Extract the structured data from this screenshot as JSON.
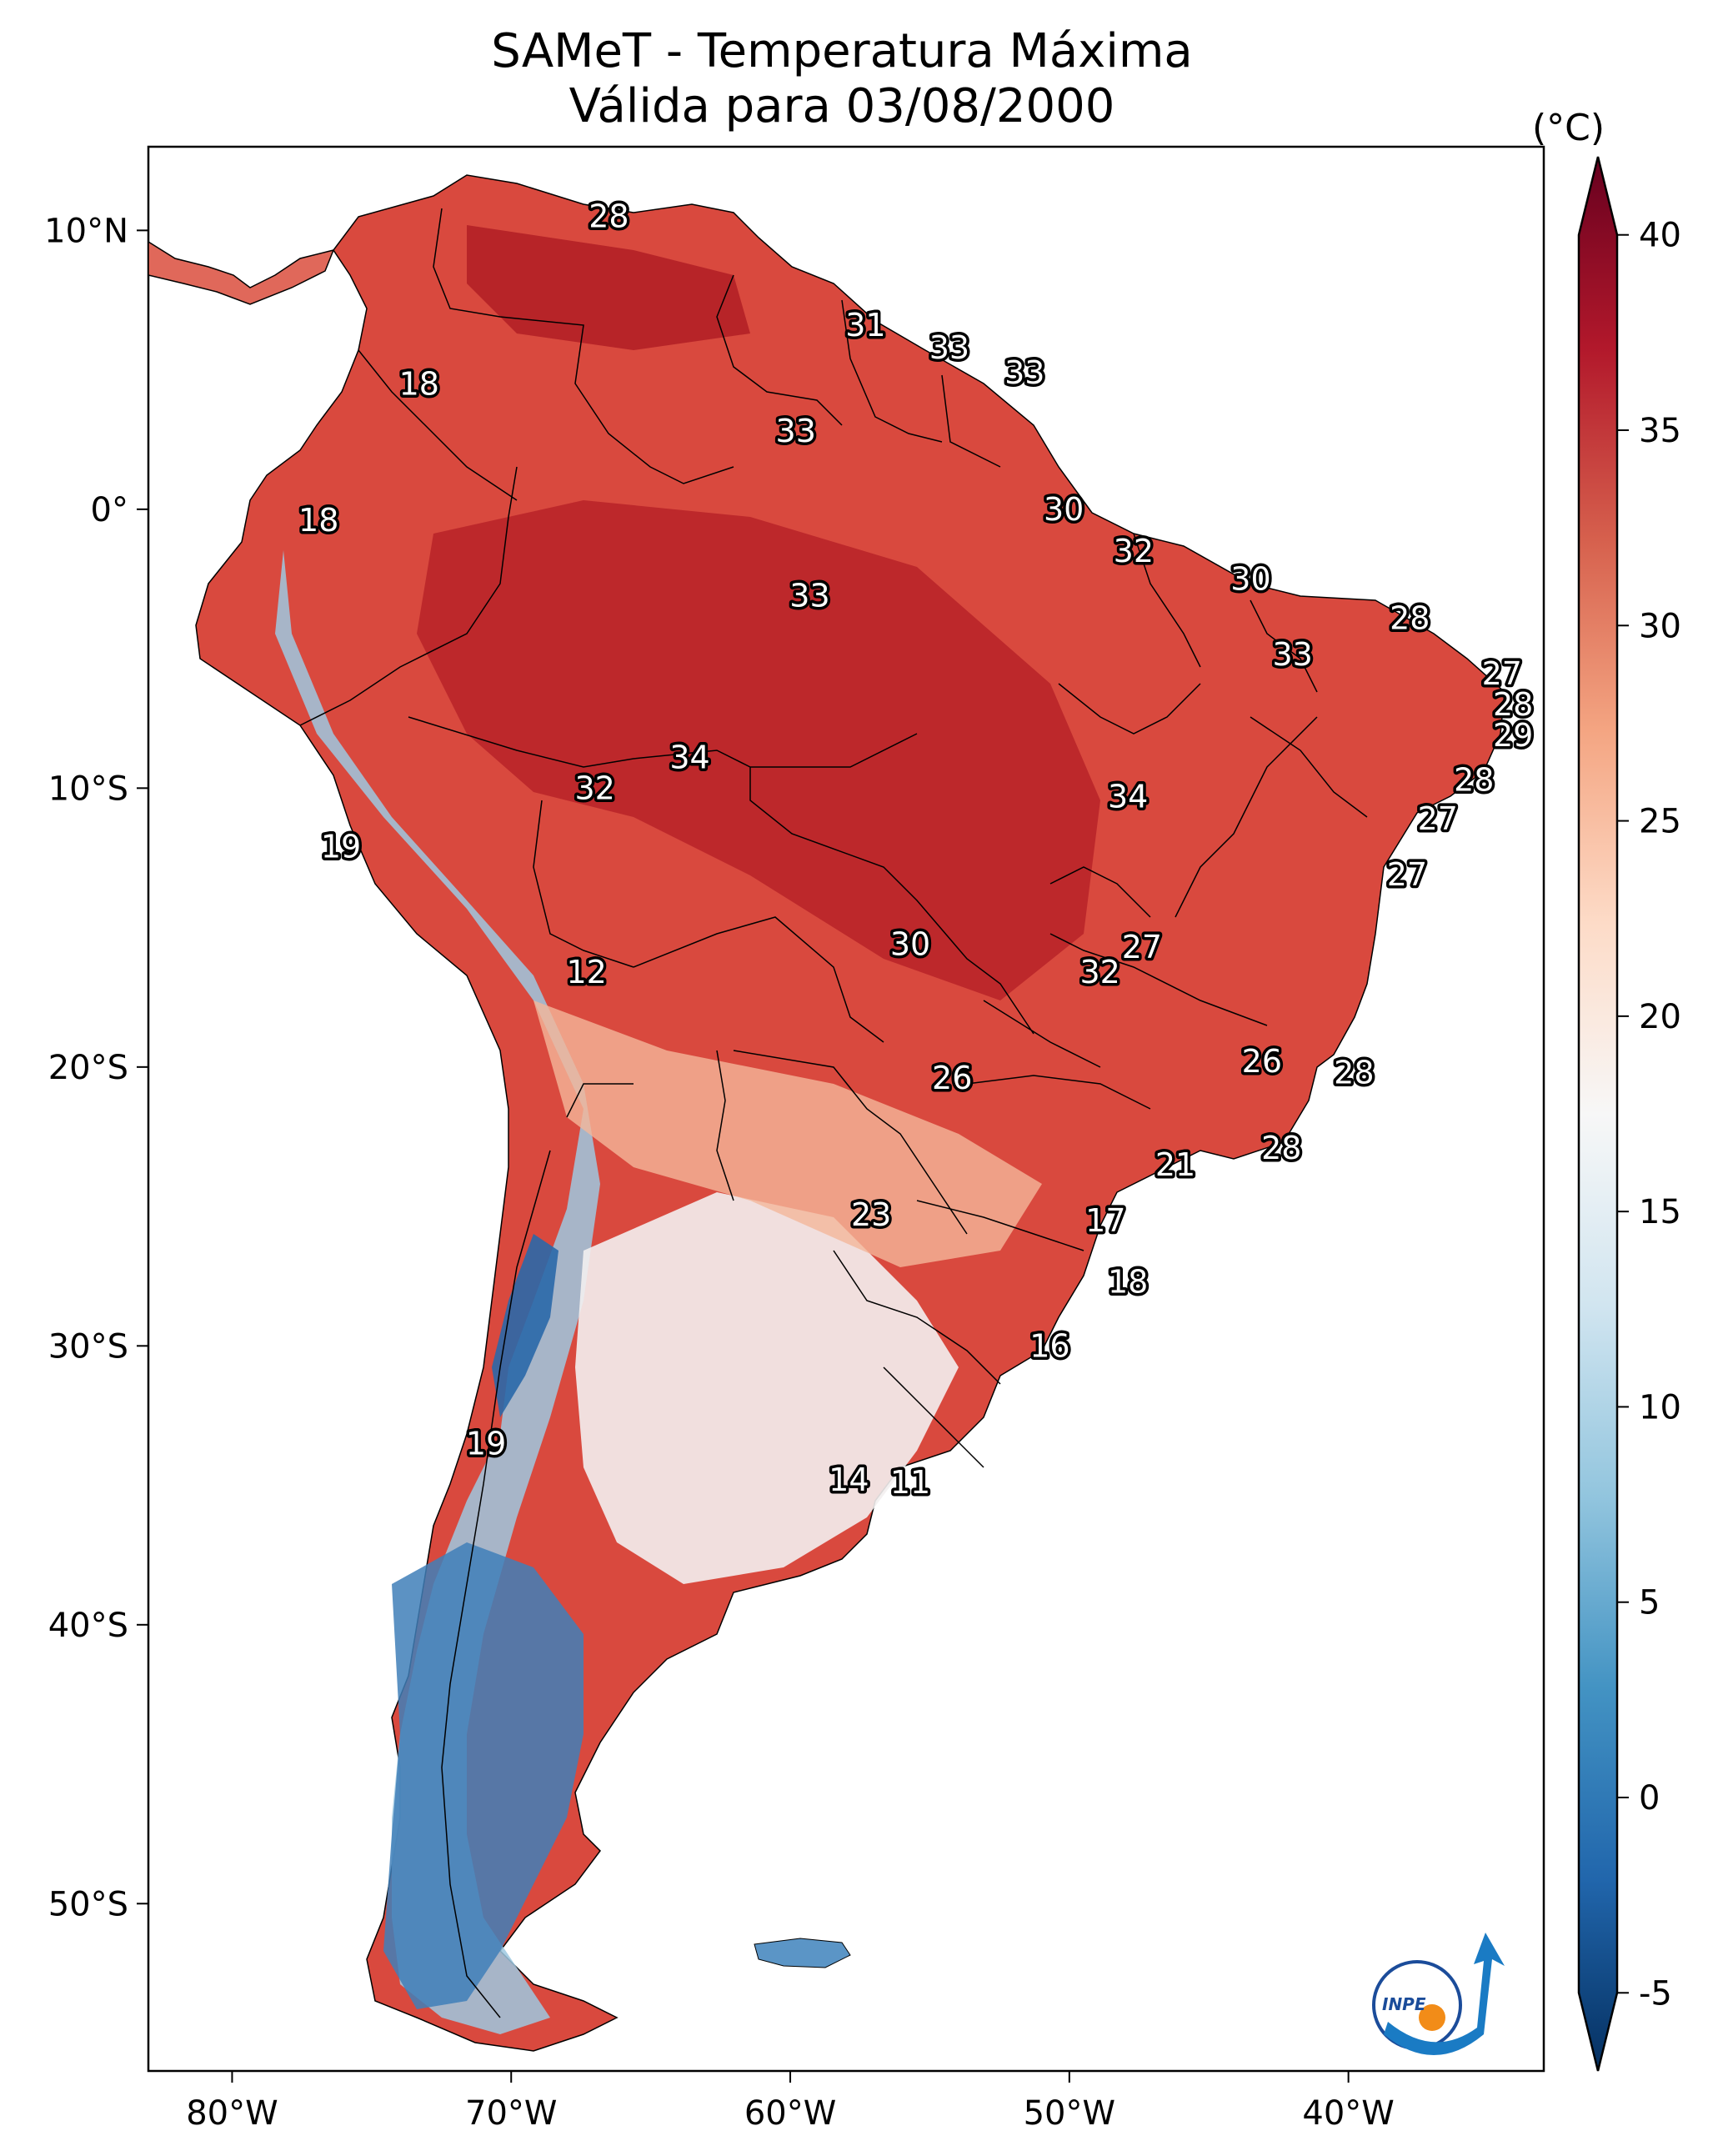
{
  "title": "SAMeT - Temperatura Máxima",
  "subtitle": "Válida para 03/08/2000",
  "colorbar": {
    "unit": "(°C)",
    "ticks": [
      40,
      35,
      30,
      25,
      20,
      15,
      10,
      5,
      0,
      -5
    ],
    "range": [
      -7,
      42
    ],
    "colors": [
      "#053061",
      "#2166ac",
      "#4393c3",
      "#92c5de",
      "#d1e5f0",
      "#f7f7f7",
      "#fddbc7",
      "#f4a582",
      "#d6604d",
      "#b2182b",
      "#67001f"
    ]
  },
  "axes": {
    "lon_labels": [
      "80°W",
      "70°W",
      "60°W",
      "50°W",
      "40°W"
    ],
    "lon_values": [
      -80,
      -70,
      -60,
      -50,
      -40
    ],
    "lat_labels": [
      "10°N",
      "0°",
      "10°S",
      "20°S",
      "30°S",
      "40°S",
      "50°S"
    ],
    "lat_values": [
      10,
      0,
      -10,
      -20,
      -30,
      -40,
      -50
    ],
    "lon_range": [
      -83,
      -33
    ],
    "lat_range": [
      -56,
      13
    ]
  },
  "labels": [
    {
      "v": "28",
      "lon": -66.5,
      "lat": 10.5
    },
    {
      "v": "18",
      "lon": -73.3,
      "lat": 4.5
    },
    {
      "v": "31",
      "lon": -57.3,
      "lat": 6.6
    },
    {
      "v": "33",
      "lon": -54.3,
      "lat": 5.8
    },
    {
      "v": "33",
      "lon": -51.6,
      "lat": 4.9
    },
    {
      "v": "33",
      "lon": -59.8,
      "lat": 2.8
    },
    {
      "v": "18",
      "lon": -76.9,
      "lat": -0.4
    },
    {
      "v": "30",
      "lon": -50.2,
      "lat": 0.0
    },
    {
      "v": "32",
      "lon": -47.7,
      "lat": -1.5
    },
    {
      "v": "30",
      "lon": -43.5,
      "lat": -2.5
    },
    {
      "v": "33",
      "lon": -59.3,
      "lat": -3.1
    },
    {
      "v": "28",
      "lon": -37.8,
      "lat": -3.9
    },
    {
      "v": "33",
      "lon": -42.0,
      "lat": -5.2
    },
    {
      "v": "27",
      "lon": -34.5,
      "lat": -5.9
    },
    {
      "v": "28",
      "lon": -34.1,
      "lat": -7.0
    },
    {
      "v": "29",
      "lon": -34.1,
      "lat": -8.1
    },
    {
      "v": "34",
      "lon": -63.6,
      "lat": -8.9
    },
    {
      "v": "32",
      "lon": -67.0,
      "lat": -10.0
    },
    {
      "v": "34",
      "lon": -47.9,
      "lat": -10.3
    },
    {
      "v": "28",
      "lon": -35.5,
      "lat": -9.7
    },
    {
      "v": "27",
      "lon": -36.8,
      "lat": -11.1
    },
    {
      "v": "19",
      "lon": -76.1,
      "lat": -12.1
    },
    {
      "v": "27",
      "lon": -37.9,
      "lat": -13.1
    },
    {
      "v": "30",
      "lon": -55.7,
      "lat": -15.6
    },
    {
      "v": "27",
      "lon": -47.4,
      "lat": -15.7
    },
    {
      "v": "12",
      "lon": -67.3,
      "lat": -16.6
    },
    {
      "v": "32",
      "lon": -48.9,
      "lat": -16.6
    },
    {
      "v": "26",
      "lon": -54.2,
      "lat": -20.4
    },
    {
      "v": "26",
      "lon": -43.1,
      "lat": -19.8
    },
    {
      "v": "28",
      "lon": -39.8,
      "lat": -20.2
    },
    {
      "v": "28",
      "lon": -42.4,
      "lat": -22.9
    },
    {
      "v": "21",
      "lon": -46.2,
      "lat": -23.5
    },
    {
      "v": "23",
      "lon": -57.1,
      "lat": -25.3
    },
    {
      "v": "17",
      "lon": -48.7,
      "lat": -25.5
    },
    {
      "v": "18",
      "lon": -47.9,
      "lat": -27.7
    },
    {
      "v": "16",
      "lon": -50.7,
      "lat": -30.0
    },
    {
      "v": "19",
      "lon": -70.9,
      "lat": -33.5
    },
    {
      "v": "14",
      "lon": -57.9,
      "lat": -34.8
    },
    {
      "v": "11",
      "lon": -55.7,
      "lat": -34.9
    }
  ],
  "logo": {
    "text": "INPE"
  }
}
